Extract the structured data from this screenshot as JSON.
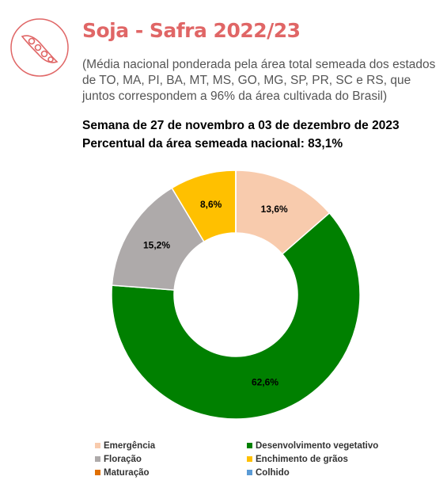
{
  "chart_data": {
    "type": "donut",
    "title": "Soja - Safra 2022/23",
    "subtitle": "(Média nacional ponderada pela área total semeada dos estados de TO, MA, PI, BA, MT, MS, GO, MG, SP, PR, SC e RS, que juntos correspondem a 96% da área cultivada do Brasil)",
    "week": "Semana de 27 de novembro a 03 de dezembro de 2023",
    "percent_sown": "Percentual da área semeada nacional: 83,1%",
    "categories": [
      "Emergência",
      "Desenvolvimento vegetativo",
      "Floração",
      "Enchimento de grãos",
      "Maturação",
      "Colhido"
    ],
    "values": [
      13.6,
      62.6,
      15.2,
      8.6,
      0,
      0
    ],
    "value_labels": [
      "13,6%",
      "62,6%",
      "15,2%",
      "8,6%",
      null,
      null
    ],
    "colors": [
      "#f8cbad",
      "#008000",
      "#aeaaaa",
      "#ffc000",
      "#e07000",
      "#5b9bd5"
    ]
  }
}
